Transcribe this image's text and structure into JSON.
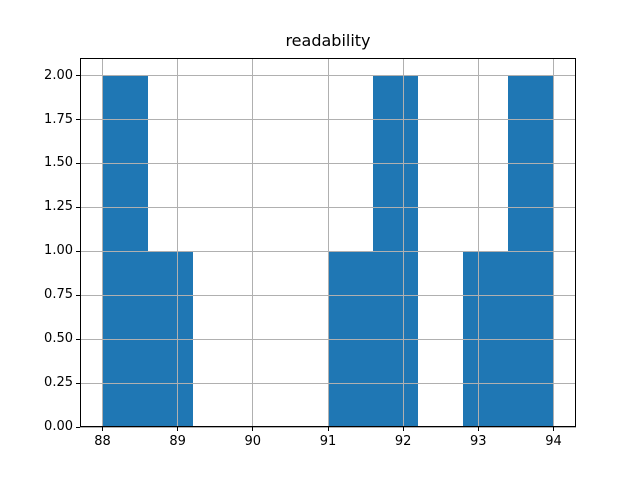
{
  "chart_data": {
    "type": "bar",
    "subtype": "histogram",
    "title": "readability",
    "xlabel": "",
    "ylabel": "",
    "bin_edges": [
      88.0,
      88.6,
      89.2,
      89.8,
      90.4,
      91.0,
      91.6,
      92.2,
      92.8,
      93.4,
      94.0
    ],
    "counts": [
      2,
      1,
      0,
      0,
      0,
      1,
      2,
      0,
      1,
      2
    ],
    "xlim": [
      87.7,
      94.3
    ],
    "ylim": [
      0.0,
      2.1
    ],
    "x_ticks": [
      88,
      89,
      90,
      91,
      92,
      93,
      94
    ],
    "x_tick_labels": [
      "88",
      "89",
      "90",
      "91",
      "92",
      "93",
      "94"
    ],
    "y_ticks": [
      0.0,
      0.25,
      0.5,
      0.75,
      1.0,
      1.25,
      1.5,
      1.75,
      2.0
    ],
    "y_tick_labels": [
      "0.00",
      "0.25",
      "0.50",
      "0.75",
      "1.00",
      "1.25",
      "1.50",
      "1.75",
      "2.00"
    ],
    "grid": true,
    "grid_axis": "both",
    "legend": "none",
    "colors": {
      "bar": "#1f77b4",
      "grid": "#b0b0b0",
      "spine": "#000000",
      "background": "#ffffff",
      "text": "#000000"
    }
  }
}
